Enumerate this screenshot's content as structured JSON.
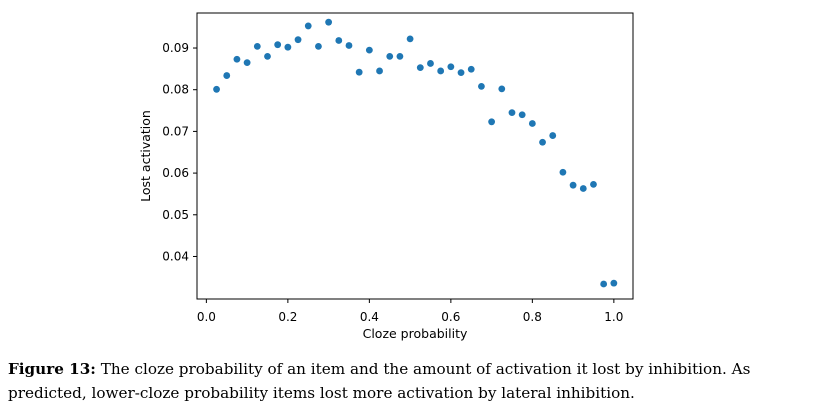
{
  "chart_data": {
    "type": "scatter",
    "title": "",
    "xlabel": "Cloze probability",
    "ylabel": "Lost activation",
    "xlim": [
      -0.023,
      1.047
    ],
    "ylim": [
      0.0298,
      0.0984
    ],
    "xticks": [
      0.0,
      0.2,
      0.4,
      0.6,
      0.8,
      1.0
    ],
    "xtick_labels": [
      "0.0",
      "0.2",
      "0.4",
      "0.6",
      "0.8",
      "1.0"
    ],
    "yticks": [
      0.04,
      0.05,
      0.06,
      0.07,
      0.08,
      0.09
    ],
    "ytick_labels": [
      "0.04",
      "0.05",
      "0.06",
      "0.07",
      "0.08",
      "0.09"
    ],
    "grid": false,
    "marker_color": "#1f77b4",
    "series": [
      {
        "x": [
          0.025,
          0.05,
          0.075,
          0.1,
          0.125,
          0.15,
          0.175,
          0.2,
          0.225,
          0.25,
          0.275,
          0.3,
          0.325,
          0.35,
          0.375,
          0.4,
          0.425,
          0.45,
          0.475,
          0.5,
          0.525,
          0.55,
          0.575,
          0.6,
          0.625,
          0.65,
          0.675,
          0.7,
          0.725,
          0.75,
          0.775,
          0.8,
          0.825,
          0.85,
          0.875,
          0.9,
          0.925,
          0.95,
          0.975,
          1.0
        ],
        "y": [
          0.0801,
          0.0834,
          0.0873,
          0.0865,
          0.0904,
          0.088,
          0.0908,
          0.0902,
          0.092,
          0.0953,
          0.0904,
          0.0962,
          0.0918,
          0.0906,
          0.0842,
          0.0895,
          0.0845,
          0.088,
          0.088,
          0.0922,
          0.0853,
          0.0863,
          0.0845,
          0.0855,
          0.0841,
          0.0849,
          0.0808,
          0.0723,
          0.0802,
          0.0745,
          0.074,
          0.0719,
          0.0674,
          0.069,
          0.0602,
          0.0571,
          0.0563,
          0.0573,
          0.0334,
          0.0336
        ]
      }
    ]
  },
  "caption": {
    "lead": "Figure 13:",
    "text": "The cloze probability of an item and the amount of activation it lost by inhibition. As predicted, lower-cloze probability items lost more activation by lateral inhibition."
  }
}
